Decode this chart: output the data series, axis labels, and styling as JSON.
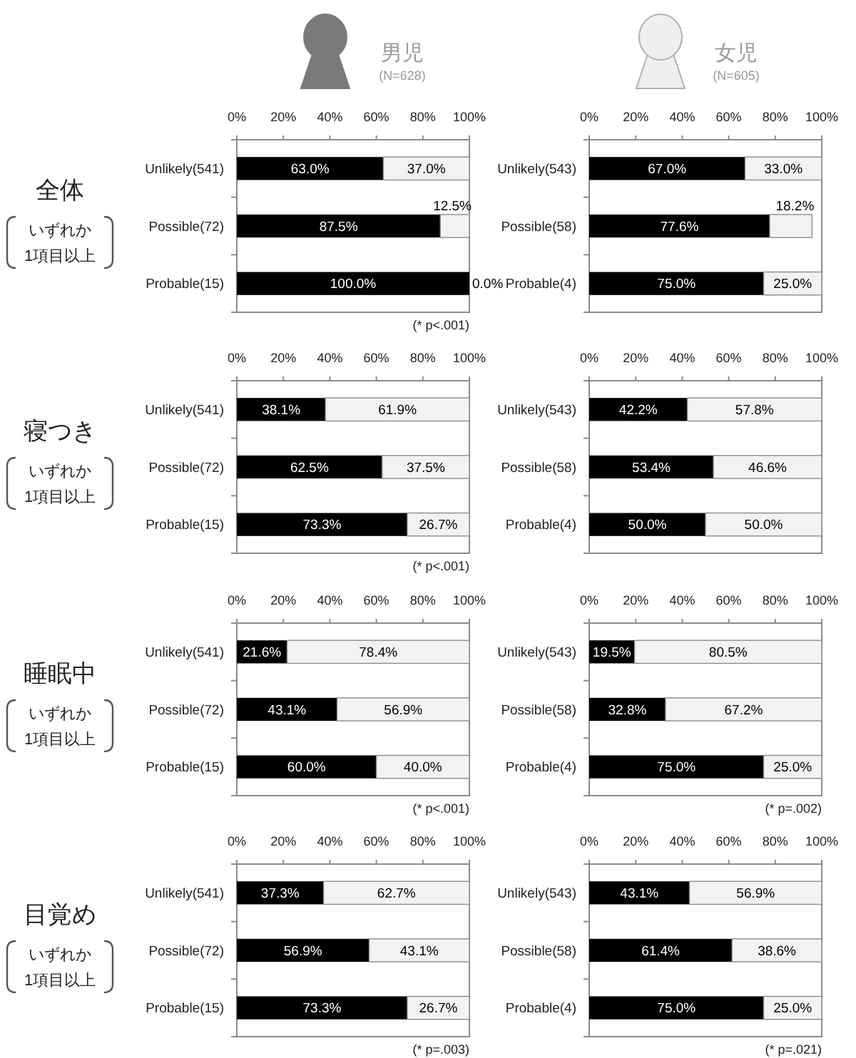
{
  "chart_data": [
    {
      "type": "bar",
      "orientation": "horizontal",
      "stacked": true,
      "title": "男児",
      "subtitle": "(N=628)",
      "ylabel": "全体",
      "categories": [
        "Unlikely(541)",
        "Possible(72)",
        "Probable(15)"
      ],
      "series": [
        {
          "color": "#000000",
          "values": [
            63.0,
            87.5,
            100.0
          ],
          "value_labels": [
            "63.0%",
            "87.5%",
            "100.0%"
          ]
        },
        {
          "color": "#f2f2f2",
          "values": [
            37.0,
            12.5,
            0.0
          ],
          "value_labels": [
            "37.0%",
            "12.5%",
            "0.0%"
          ]
        }
      ],
      "xlim": [
        0,
        100
      ],
      "xticks": [
        {
          "value": 0,
          "label": "0%"
        },
        {
          "value": 20,
          "label": "20%"
        },
        {
          "value": 40,
          "label": "40%"
        },
        {
          "value": 60,
          "label": "60%"
        },
        {
          "value": 80,
          "label": "80%"
        },
        {
          "value": 100,
          "label": "100%"
        }
      ],
      "annotations": [
        "いずれか\n1項目以上",
        "(* p<.001)"
      ]
    },
    {
      "type": "bar",
      "orientation": "horizontal",
      "stacked": true,
      "title": "女児",
      "subtitle": "(N=605)",
      "categories": [
        "Unlikely(543)",
        "Possible(58)",
        "Probable(4)"
      ],
      "series": [
        {
          "color": "#000000",
          "values": [
            67.0,
            77.6,
            75.0
          ],
          "value_labels": [
            "67.0%",
            "77.6%",
            "75.0%"
          ]
        },
        {
          "color": "#f2f2f2",
          "values": [
            33.0,
            18.2,
            25.0
          ],
          "value_labels": [
            "33.0%",
            "18.2%",
            "25.0%"
          ]
        }
      ],
      "xlim": [
        0,
        100
      ],
      "xticks": [
        {
          "value": 0,
          "label": "0%"
        },
        {
          "value": 20,
          "label": "20%"
        },
        {
          "value": 40,
          "label": "40%"
        },
        {
          "value": 60,
          "label": "60%"
        },
        {
          "value": 80,
          "label": "80%"
        },
        {
          "value": 100,
          "label": "100%"
        }
      ]
    },
    {
      "type": "bar",
      "orientation": "horizontal",
      "stacked": true,
      "ylabel": "寝つき",
      "categories": [
        "Unlikely(541)",
        "Possible(72)",
        "Probable(15)"
      ],
      "series": [
        {
          "color": "#000000",
          "values": [
            38.1,
            62.5,
            73.3
          ],
          "value_labels": [
            "38.1%",
            "62.5%",
            "73.3%"
          ]
        },
        {
          "color": "#f2f2f2",
          "values": [
            61.9,
            37.5,
            26.7
          ],
          "value_labels": [
            "61.9%",
            "37.5%",
            "26.7%"
          ]
        }
      ],
      "xlim": [
        0,
        100
      ],
      "xticks": [
        {
          "value": 0,
          "label": "0%"
        },
        {
          "value": 20,
          "label": "20%"
        },
        {
          "value": 40,
          "label": "40%"
        },
        {
          "value": 60,
          "label": "60%"
        },
        {
          "value": 80,
          "label": "80%"
        },
        {
          "value": 100,
          "label": "100%"
        }
      ],
      "annotations": [
        "いずれか\n1項目以上",
        "(* p<.001)"
      ]
    },
    {
      "type": "bar",
      "orientation": "horizontal",
      "stacked": true,
      "categories": [
        "Unlikely(543)",
        "Possible(58)",
        "Probable(4)"
      ],
      "series": [
        {
          "color": "#000000",
          "values": [
            42.2,
            53.4,
            50.0
          ],
          "value_labels": [
            "42.2%",
            "53.4%",
            "50.0%"
          ]
        },
        {
          "color": "#f2f2f2",
          "values": [
            57.8,
            46.6,
            50.0
          ],
          "value_labels": [
            "57.8%",
            "46.6%",
            "50.0%"
          ]
        }
      ],
      "xlim": [
        0,
        100
      ],
      "xticks": [
        {
          "value": 0,
          "label": "0%"
        },
        {
          "value": 20,
          "label": "20%"
        },
        {
          "value": 40,
          "label": "40%"
        },
        {
          "value": 60,
          "label": "60%"
        },
        {
          "value": 80,
          "label": "80%"
        },
        {
          "value": 100,
          "label": "100%"
        }
      ]
    },
    {
      "type": "bar",
      "orientation": "horizontal",
      "stacked": true,
      "ylabel": "睡眠中",
      "categories": [
        "Unlikely(541)",
        "Possible(72)",
        "Probable(15)"
      ],
      "series": [
        {
          "color": "#000000",
          "values": [
            21.6,
            43.1,
            60.0
          ],
          "value_labels": [
            "21.6%",
            "43.1%",
            "60.0%"
          ]
        },
        {
          "color": "#f2f2f2",
          "values": [
            78.4,
            56.9,
            40.0
          ],
          "value_labels": [
            "78.4%",
            "56.9%",
            "40.0%"
          ]
        }
      ],
      "xlim": [
        0,
        100
      ],
      "xticks": [
        {
          "value": 0,
          "label": "0%"
        },
        {
          "value": 20,
          "label": "20%"
        },
        {
          "value": 40,
          "label": "40%"
        },
        {
          "value": 60,
          "label": "60%"
        },
        {
          "value": 80,
          "label": "80%"
        },
        {
          "value": 100,
          "label": "100%"
        }
      ],
      "annotations": [
        "いずれか\n1項目以上",
        "(* p<.001)"
      ]
    },
    {
      "type": "bar",
      "orientation": "horizontal",
      "stacked": true,
      "categories": [
        "Unlikely(543)",
        "Possible(58)",
        "Probable(4)"
      ],
      "series": [
        {
          "color": "#000000",
          "values": [
            19.5,
            32.8,
            75.0
          ],
          "value_labels": [
            "19.5%",
            "32.8%",
            "75.0%"
          ]
        },
        {
          "color": "#f2f2f2",
          "values": [
            80.5,
            67.2,
            25.0
          ],
          "value_labels": [
            "80.5%",
            "67.2%",
            "25.0%"
          ]
        }
      ],
      "xlim": [
        0,
        100
      ],
      "xticks": [
        {
          "value": 0,
          "label": "0%"
        },
        {
          "value": 20,
          "label": "20%"
        },
        {
          "value": 40,
          "label": "40%"
        },
        {
          "value": 60,
          "label": "60%"
        },
        {
          "value": 80,
          "label": "80%"
        },
        {
          "value": 100,
          "label": "100%"
        }
      ],
      "annotations": [
        "(* p=.002)"
      ]
    },
    {
      "type": "bar",
      "orientation": "horizontal",
      "stacked": true,
      "ylabel": "目覚め",
      "categories": [
        "Unlikely(541)",
        "Possible(72)",
        "Probable(15)"
      ],
      "series": [
        {
          "color": "#000000",
          "values": [
            37.3,
            56.9,
            73.3
          ],
          "value_labels": [
            "37.3%",
            "56.9%",
            "73.3%"
          ]
        },
        {
          "color": "#f2f2f2",
          "values": [
            62.7,
            43.1,
            26.7
          ],
          "value_labels": [
            "62.7%",
            "43.1%",
            "26.7%"
          ]
        }
      ],
      "xlim": [
        0,
        100
      ],
      "xticks": [
        {
          "value": 0,
          "label": "0%"
        },
        {
          "value": 20,
          "label": "20%"
        },
        {
          "value": 40,
          "label": "40%"
        },
        {
          "value": 60,
          "label": "60%"
        },
        {
          "value": 80,
          "label": "80%"
        },
        {
          "value": 100,
          "label": "100%"
        }
      ],
      "annotations": [
        "いずれか\n1項目以上",
        "(* p=.003)"
      ]
    },
    {
      "type": "bar",
      "orientation": "horizontal",
      "stacked": true,
      "categories": [
        "Unlikely(543)",
        "Possible(58)",
        "Probable(4)"
      ],
      "series": [
        {
          "color": "#000000",
          "values": [
            43.1,
            61.4,
            75.0
          ],
          "value_labels": [
            "43.1%",
            "61.4%",
            "75.0%"
          ]
        },
        {
          "color": "#f2f2f2",
          "values": [
            56.9,
            38.6,
            25.0
          ],
          "value_labels": [
            "56.9%",
            "38.6%",
            "25.0%"
          ]
        }
      ],
      "xlim": [
        0,
        100
      ],
      "xticks": [
        {
          "value": 0,
          "label": "0%"
        },
        {
          "value": 20,
          "label": "20%"
        },
        {
          "value": 40,
          "label": "40%"
        },
        {
          "value": 60,
          "label": "60%"
        },
        {
          "value": 80,
          "label": "80%"
        },
        {
          "value": 100,
          "label": "100%"
        }
      ],
      "annotations": [
        "(* p=.021)"
      ]
    }
  ]
}
